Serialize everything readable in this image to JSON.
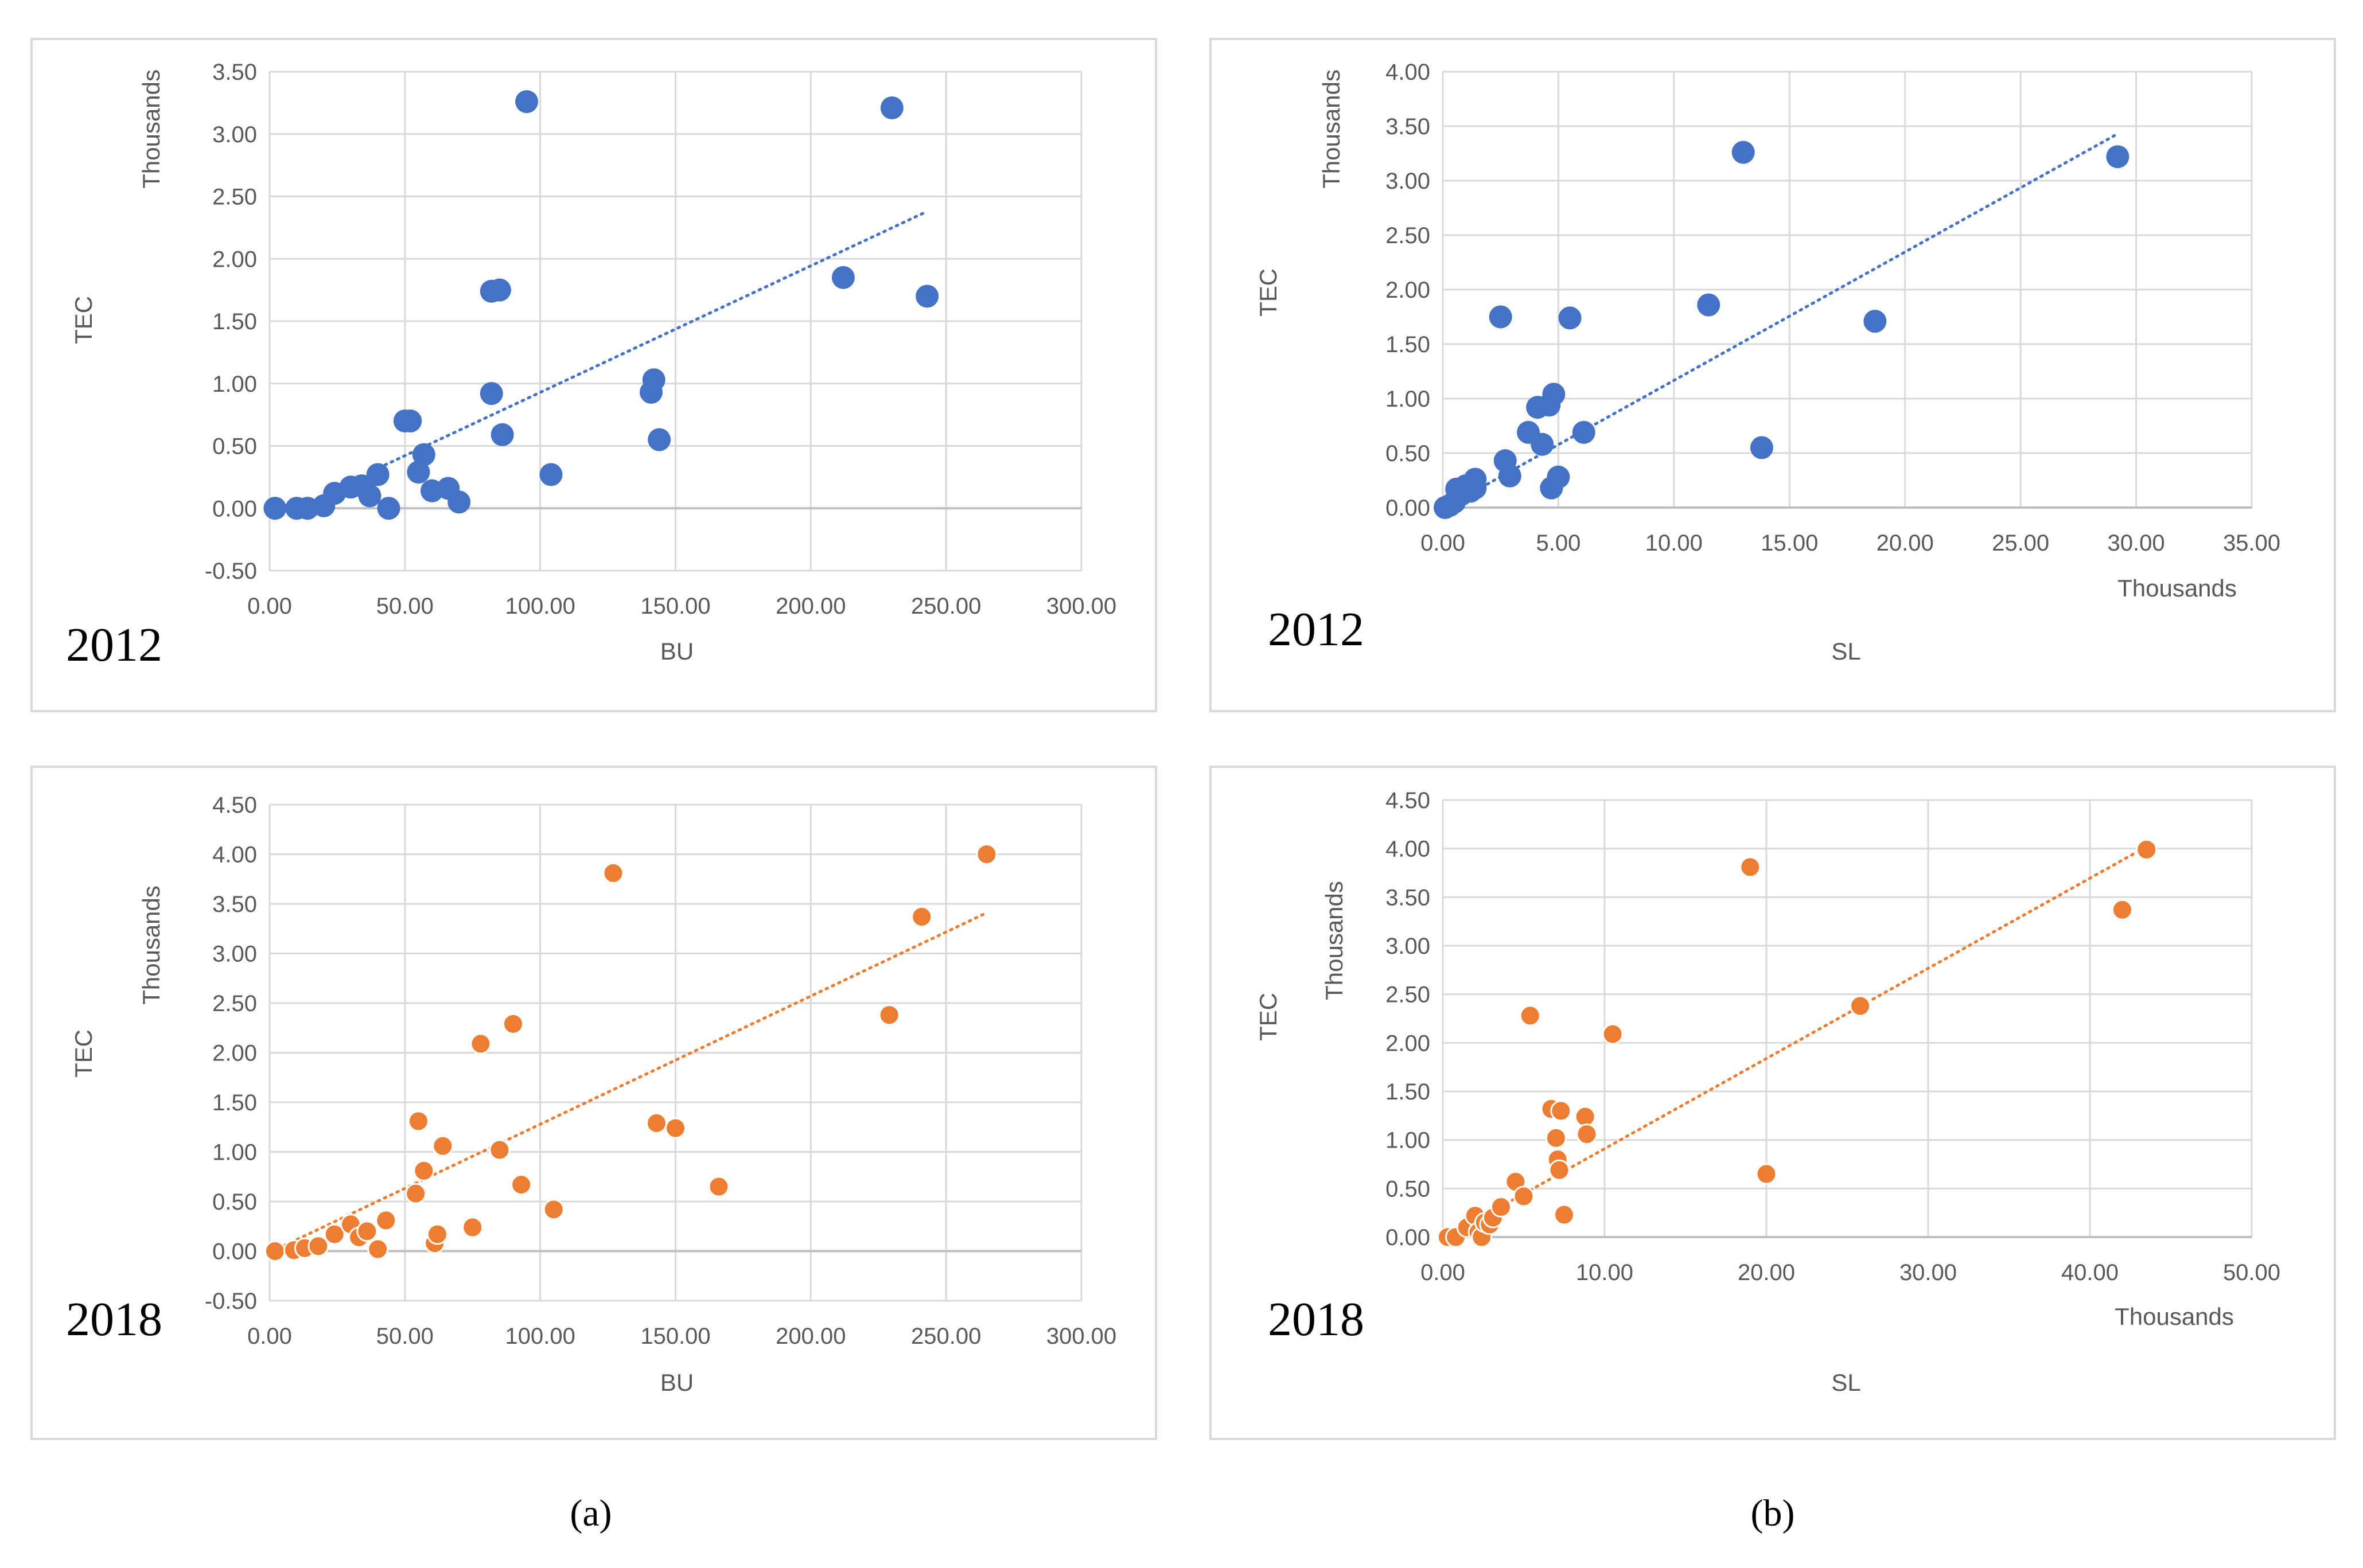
{
  "colors": {
    "series2012": "#4472C4",
    "series2018": "#ED7D31",
    "grid": "#D9D9D9",
    "frame": "#D9D9D9",
    "text": "#595959"
  },
  "captions": {
    "a": "(a)",
    "b": "(b)"
  },
  "chart_data": [
    {
      "type": "scatter",
      "title": "",
      "year_label": "2012",
      "xlabel": "BU",
      "ylabel": "TEC",
      "y_unit_label": "Thousands",
      "x_unit_label": "",
      "xlim": [
        0,
        300
      ],
      "xticks": [
        0,
        50,
        100,
        150,
        200,
        250,
        300
      ],
      "xtick_labels": [
        "0.00",
        "50.00",
        "100.00",
        "150.00",
        "200.00",
        "250.00",
        "300.00"
      ],
      "ylim": [
        -0.5,
        3.5
      ],
      "yticks": [
        -0.5,
        0,
        0.5,
        1,
        1.5,
        2,
        2.5,
        3,
        3.5
      ],
      "ytick_labels": [
        "-0.50",
        "0.00",
        "0.50",
        "1.00",
        "1.50",
        "2.00",
        "2.50",
        "3.00",
        "3.50"
      ],
      "trendline": {
        "type": "linear",
        "x": [
          38,
          243
        ],
        "y": [
          0.3,
          2.38
        ]
      },
      "series": [
        {
          "name": "2012",
          "color": "#4472C4",
          "x": [
            2,
            10,
            14,
            20,
            24,
            30,
            34,
            37,
            40,
            44,
            50,
            52,
            55,
            57,
            60,
            66,
            70,
            82,
            82,
            85,
            86,
            95,
            104,
            141,
            142,
            144,
            212,
            230,
            243
          ],
          "y": [
            0.0,
            0.0,
            0.0,
            0.02,
            0.12,
            0.17,
            0.18,
            0.1,
            0.27,
            0.0,
            0.7,
            0.7,
            0.29,
            0.43,
            0.14,
            0.16,
            0.05,
            1.74,
            0.92,
            1.75,
            0.59,
            3.26,
            0.27,
            0.93,
            1.03,
            0.55,
            1.85,
            3.21,
            1.7
          ]
        }
      ]
    },
    {
      "type": "scatter",
      "title": "",
      "year_label": "2012",
      "xlabel": "SL",
      "ylabel": "TEC",
      "y_unit_label": "Thousands",
      "x_unit_label": "Thousands",
      "xlim": [
        0,
        35
      ],
      "xticks": [
        0,
        5,
        10,
        15,
        20,
        25,
        30,
        35
      ],
      "xtick_labels": [
        "0.00",
        "5.00",
        "10.00",
        "15.00",
        "20.00",
        "25.00",
        "30.00",
        "35.00"
      ],
      "ylim": [
        0,
        4
      ],
      "yticks": [
        0,
        0.5,
        1,
        1.5,
        2,
        2.5,
        3,
        3.5,
        4
      ],
      "ytick_labels": [
        "0.00",
        "0.50",
        "1.00",
        "1.50",
        "2.00",
        "2.50",
        "3.00",
        "3.50",
        "4.00"
      ],
      "trendline": {
        "type": "linear",
        "x": [
          0.1,
          29.2
        ],
        "y": [
          0.0,
          3.43
        ]
      },
      "series": [
        {
          "name": "2012",
          "color": "#4472C4",
          "x": [
            0.1,
            0.3,
            0.5,
            0.6,
            0.8,
            1.0,
            1.2,
            1.4,
            1.4,
            2.5,
            2.7,
            2.9,
            3.7,
            4.1,
            4.3,
            4.6,
            4.7,
            4.8,
            5.0,
            5.5,
            6.1,
            11.5,
            13.0,
            13.8,
            18.7,
            29.2
          ],
          "y": [
            0.0,
            0.02,
            0.05,
            0.17,
            0.12,
            0.2,
            0.15,
            0.26,
            0.18,
            1.75,
            0.43,
            0.29,
            0.69,
            0.92,
            0.58,
            0.94,
            0.18,
            1.04,
            0.28,
            1.74,
            0.69,
            1.86,
            3.26,
            0.55,
            1.71,
            3.22
          ]
        }
      ]
    },
    {
      "type": "scatter",
      "title": "",
      "year_label": "2018",
      "xlabel": "BU",
      "ylabel": "TEC",
      "y_unit_label": "Thousands",
      "x_unit_label": "",
      "xlim": [
        0,
        300
      ],
      "xticks": [
        0,
        50,
        100,
        150,
        200,
        250,
        300
      ],
      "xtick_labels": [
        "0.00",
        "50.00",
        "100.00",
        "150.00",
        "200.00",
        "250.00",
        "300.00"
      ],
      "ylim": [
        -0.5,
        4.5
      ],
      "yticks": [
        -0.5,
        0,
        0.5,
        1,
        1.5,
        2,
        2.5,
        3,
        3.5,
        4,
        4.5
      ],
      "ytick_labels": [
        "-0.50",
        "0.00",
        "0.50",
        "1.00",
        "1.50",
        "2.00",
        "2.50",
        "3.00",
        "3.50",
        "4.00",
        "4.50"
      ],
      "trendline": {
        "type": "linear",
        "x": [
          1,
          265
        ],
        "y": [
          0.0,
          3.41
        ]
      },
      "series": [
        {
          "name": "2018",
          "color": "#ED7D31",
          "x": [
            2,
            9,
            13,
            18,
            24,
            30,
            33,
            36,
            40,
            43,
            54,
            55,
            57,
            61,
            62,
            64,
            75,
            78,
            85,
            90,
            93,
            105,
            127,
            143,
            150,
            166,
            229,
            241,
            265
          ],
          "y": [
            0.0,
            0.01,
            0.03,
            0.05,
            0.17,
            0.27,
            0.14,
            0.2,
            0.02,
            0.31,
            0.58,
            1.31,
            0.81,
            0.08,
            0.17,
            1.06,
            0.24,
            2.09,
            1.02,
            2.29,
            0.67,
            0.42,
            3.81,
            1.29,
            1.24,
            0.65,
            2.38,
            3.37,
            4.0
          ]
        }
      ]
    },
    {
      "type": "scatter",
      "title": "",
      "year_label": "2018",
      "xlabel": "SL",
      "ylabel": "TEC",
      "y_unit_label": "Thousands",
      "x_unit_label": "Thousands",
      "xlim": [
        0,
        50
      ],
      "xticks": [
        0,
        10,
        20,
        30,
        40,
        50
      ],
      "xtick_labels": [
        "0.00",
        "10.00",
        "20.00",
        "30.00",
        "40.00",
        "50.00"
      ],
      "ylim": [
        0,
        4.5
      ],
      "yticks": [
        0,
        0.5,
        1,
        1.5,
        2,
        2.5,
        3,
        3.5,
        4,
        4.5
      ],
      "ytick_labels": [
        "0.00",
        "0.50",
        "1.00",
        "1.50",
        "2.00",
        "2.50",
        "3.00",
        "3.50",
        "4.00",
        "4.50"
      ],
      "trendline": {
        "type": "linear",
        "x": [
          0.2,
          43.5
        ],
        "y": [
          0.0,
          4.02
        ]
      },
      "series": [
        {
          "name": "2018",
          "color": "#ED7D31",
          "x": [
            0.3,
            0.8,
            1.5,
            2.0,
            2.2,
            2.4,
            2.6,
            2.9,
            3.1,
            3.6,
            4.5,
            5.0,
            5.4,
            6.7,
            7.0,
            7.1,
            7.2,
            7.3,
            7.5,
            8.8,
            8.9,
            10.5,
            19.0,
            20.0,
            25.8,
            42.0,
            43.5
          ],
          "y": [
            0.0,
            0.0,
            0.1,
            0.22,
            0.05,
            0.0,
            0.15,
            0.13,
            0.2,
            0.31,
            0.57,
            0.42,
            2.28,
            1.32,
            1.02,
            0.8,
            0.69,
            1.3,
            0.23,
            1.24,
            1.06,
            2.09,
            3.81,
            0.65,
            2.38,
            3.37,
            3.99
          ]
        }
      ]
    }
  ]
}
